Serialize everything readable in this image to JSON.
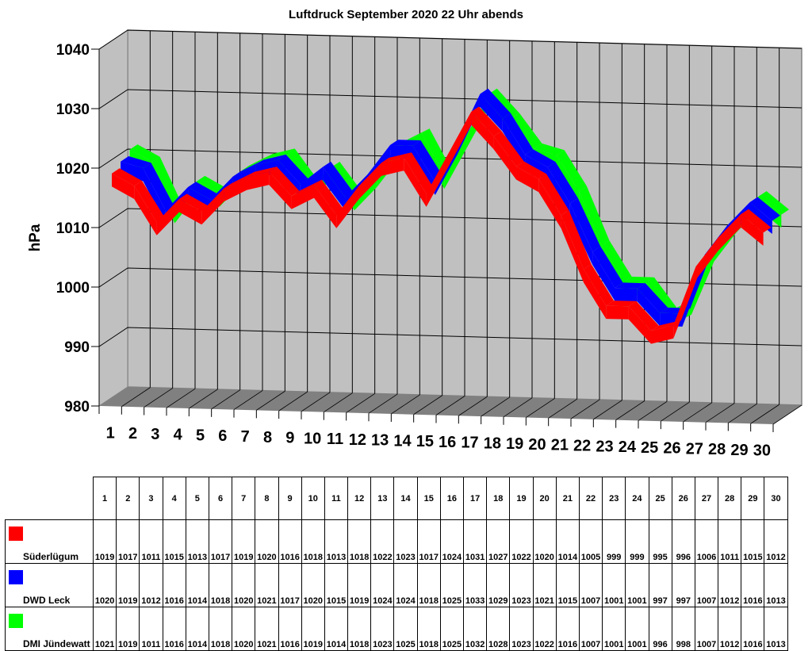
{
  "chart_data": {
    "type": "line",
    "style": "3d-ribbon",
    "title": "Luftdruck September 2020 22 Uhr abends",
    "xlabel": "",
    "ylabel": "hPa",
    "ylim": [
      980,
      1040
    ],
    "yticks": [
      980,
      990,
      1000,
      1010,
      1020,
      1030,
      1040
    ],
    "grid": true,
    "legend_position": "data-table-below",
    "categories": [
      "1",
      "2",
      "3",
      "4",
      "5",
      "6",
      "7",
      "8",
      "9",
      "10",
      "11",
      "12",
      "13",
      "14",
      "15",
      "16",
      "17",
      "18",
      "19",
      "20",
      "21",
      "22",
      "23",
      "24",
      "25",
      "26",
      "27",
      "28",
      "29",
      "30"
    ],
    "series": [
      {
        "name": "Süderlügum",
        "color": "#ff0000",
        "values": [
          1019,
          1017,
          1011,
          1015,
          1013,
          1017,
          1019,
          1020,
          1016,
          1018,
          1013,
          1018,
          1022,
          1023,
          1017,
          1024,
          1031,
          1027,
          1022,
          1020,
          1014,
          1005,
          999,
          999,
          995,
          996,
          1006,
          1011,
          1015,
          1012
        ]
      },
      {
        "name": "DWD Leck",
        "color": "#0000ff",
        "values": [
          1020,
          1019,
          1012,
          1016,
          1014,
          1018,
          1020,
          1021,
          1017,
          1020,
          1015,
          1019,
          1024,
          1024,
          1018,
          1025,
          1033,
          1029,
          1023,
          1021,
          1015,
          1007,
          1001,
          1001,
          997,
          997,
          1007,
          1012,
          1016,
          1013
        ]
      },
      {
        "name": "DMI Jündewatt",
        "color": "#00ff00",
        "values": [
          1021,
          1019,
          1011,
          1016,
          1014,
          1018,
          1020,
          1021,
          1016,
          1019,
          1014,
          1018,
          1023,
          1025,
          1018,
          1025,
          1032,
          1028,
          1023,
          1022,
          1016,
          1007,
          1001,
          1001,
          996,
          998,
          1007,
          1012,
          1016,
          1013
        ]
      }
    ]
  },
  "colors": {
    "wall": "#c0c0c0",
    "floor": "#808080",
    "grid": "#000000"
  }
}
